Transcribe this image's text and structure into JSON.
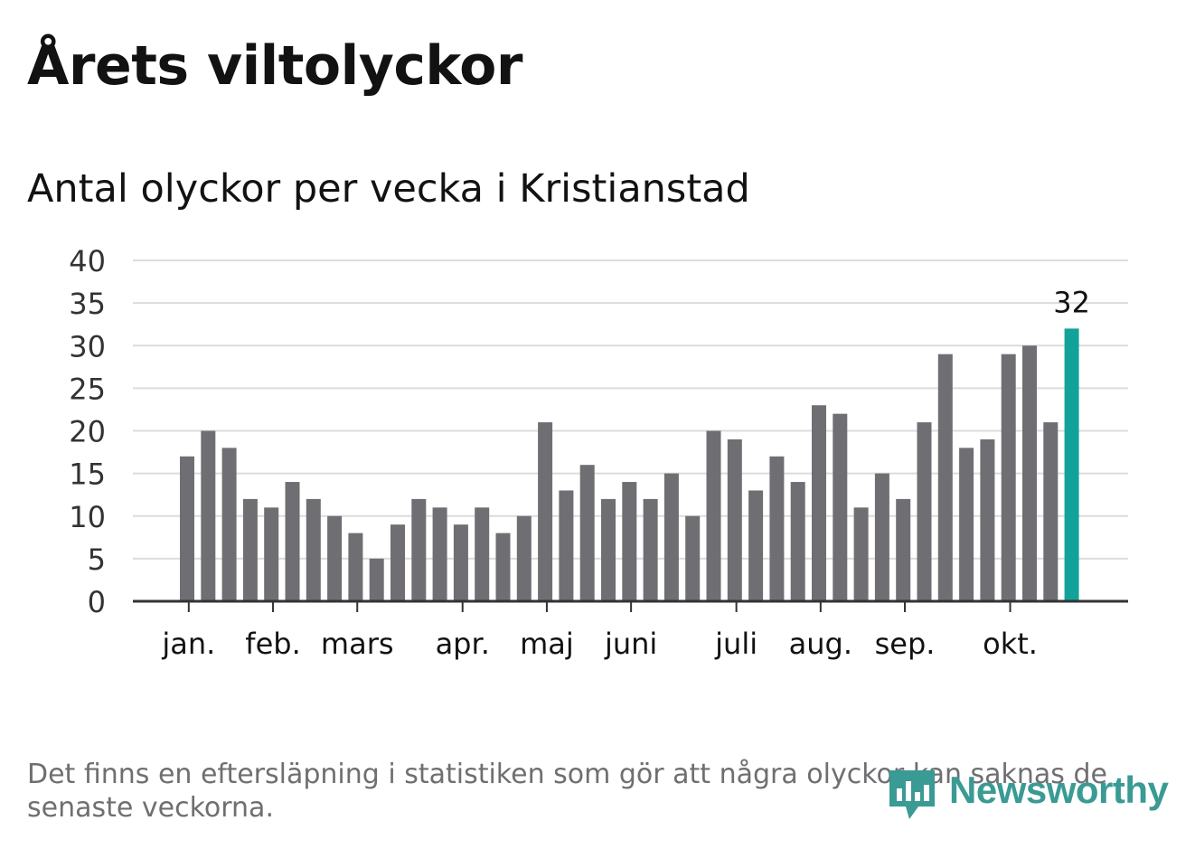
{
  "title": "Årets viltolyckor",
  "subtitle": "Antal olyckor per vecka i Kristianstad",
  "footnote": "Det finns en eftersläpning i statistiken som gör att några olyckor kan saknas de senaste veckorna.",
  "logo_text": "Newsworthy",
  "colors": {
    "bar": "#6f6e73",
    "highlight": "#11a39a",
    "grid": "#dcdcdc",
    "axis": "#333333",
    "text": "#121212"
  },
  "chart_data": {
    "type": "bar",
    "title": "Antal olyckor per vecka i Kristianstad",
    "ylabel": "",
    "xlabel": "",
    "ylim": [
      0,
      40
    ],
    "yticks": [
      0,
      5,
      10,
      15,
      20,
      25,
      30,
      35,
      40
    ],
    "grid": true,
    "values": [
      17,
      20,
      18,
      12,
      11,
      14,
      12,
      10,
      8,
      5,
      9,
      12,
      11,
      9,
      11,
      8,
      10,
      21,
      13,
      16,
      12,
      14,
      12,
      15,
      10,
      20,
      19,
      13,
      17,
      14,
      23,
      22,
      11,
      15,
      12,
      21,
      29,
      18,
      19,
      29,
      30,
      21,
      32
    ],
    "highlight_index": 42,
    "highlight_label": "32",
    "month_labels": [
      {
        "label": "jan.",
        "week_index": 0.25
      },
      {
        "label": "feb.",
        "week_index": 4.25
      },
      {
        "label": "mars",
        "week_index": 8.25
      },
      {
        "label": "apr.",
        "week_index": 13.25
      },
      {
        "label": "maj",
        "week_index": 17.25
      },
      {
        "label": "juni",
        "week_index": 21.25
      },
      {
        "label": "juli",
        "week_index": 26.25
      },
      {
        "label": "aug.",
        "week_index": 30.25
      },
      {
        "label": "sep.",
        "week_index": 34.25
      },
      {
        "label": "okt.",
        "week_index": 39.25
      }
    ]
  }
}
